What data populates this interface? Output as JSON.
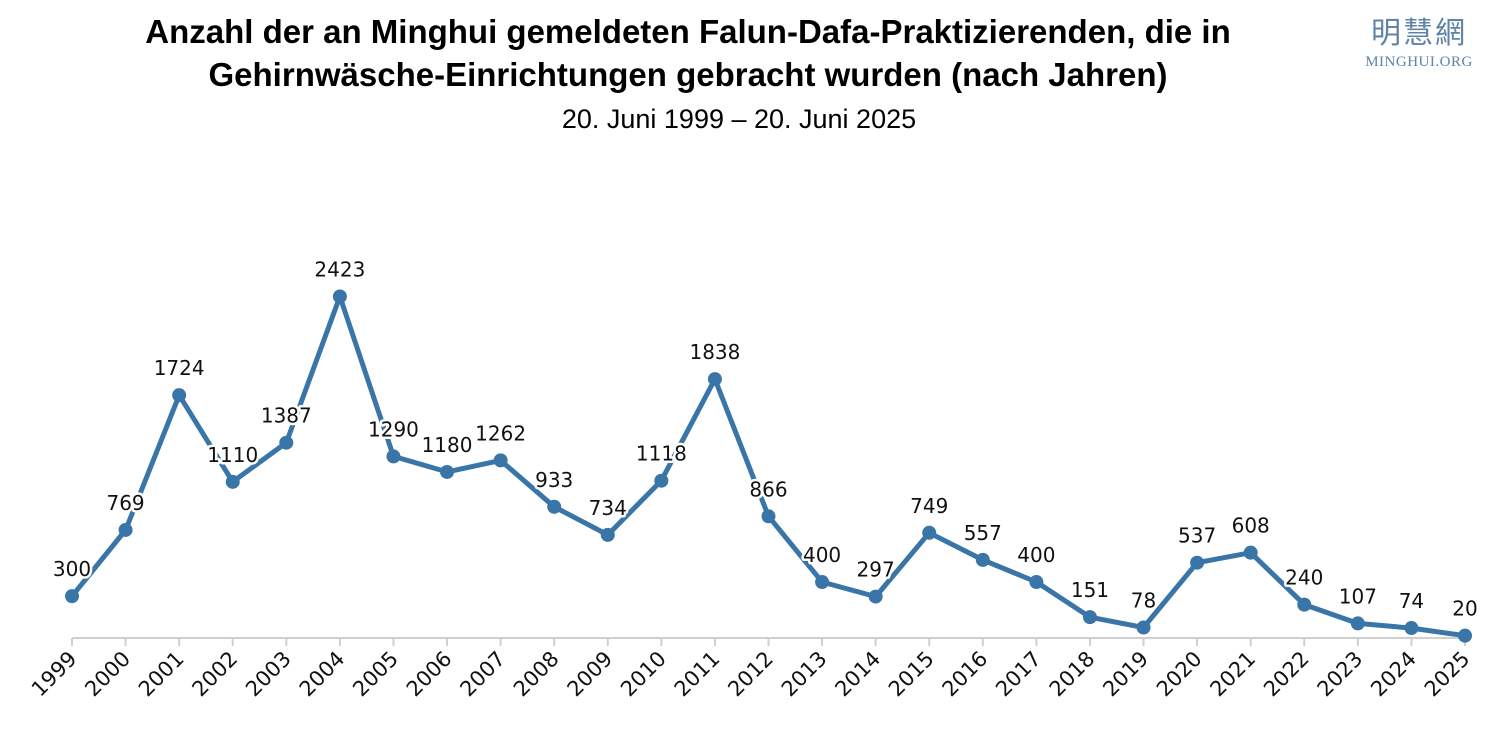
{
  "header": {
    "title_line1": "Anzahl der an Minghui gemeldeten Falun-Dafa-Praktizierenden, die in",
    "title_line2": "Gehirnwäsche-Einrichtungen gebracht wurden (nach Jahren)",
    "subtitle": "20. Juni 1999 – 20. Juni 2025"
  },
  "logo": {
    "chinese": "明慧網",
    "latin": "MINGHUI.ORG",
    "color": "#5f84a6"
  },
  "chart_data": {
    "type": "line",
    "title": "Anzahl der an Minghui gemeldeten Falun-Dafa-Praktizierenden, die in Gehirnwäsche-Einrichtungen gebracht wurden (nach Jahren)",
    "subtitle": "20. Juni 1999 – 20. Juni 2025",
    "xlabel": "",
    "ylabel": "",
    "ylim": [
      0,
      2423
    ],
    "grid": false,
    "legend": "none",
    "color": "#3a75a8",
    "categories": [
      "1999",
      "2000",
      "2001",
      "2002",
      "2003",
      "2004",
      "2005",
      "2006",
      "2007",
      "2008",
      "2009",
      "2010",
      "2011",
      "2012",
      "2013",
      "2014",
      "2015",
      "2016",
      "2017",
      "2018",
      "2019",
      "2020",
      "2021",
      "2022",
      "2023",
      "2024",
      "2025"
    ],
    "series": [
      {
        "values": [
          300,
          769,
          1724,
          1110,
          1387,
          2423,
          1290,
          1180,
          1262,
          933,
          734,
          1118,
          1838,
          866,
          400,
          297,
          749,
          557,
          400,
          151,
          78,
          537,
          608,
          240,
          107,
          74,
          20
        ]
      }
    ]
  }
}
